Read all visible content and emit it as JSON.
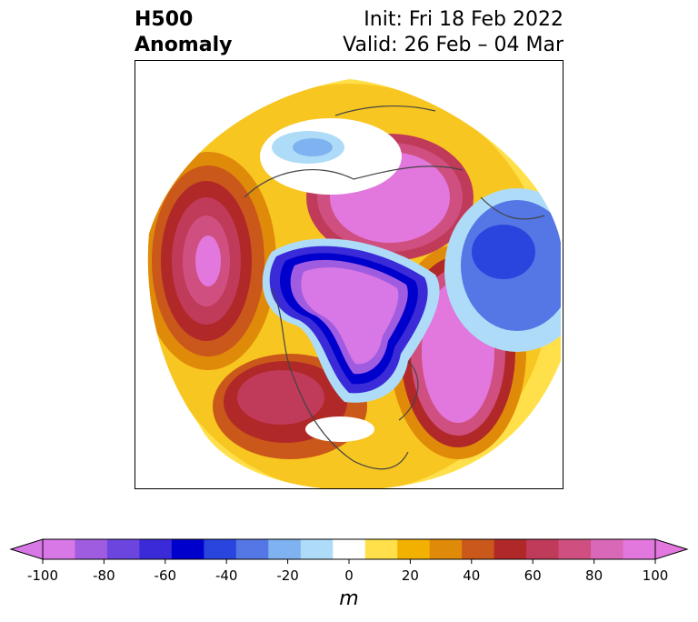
{
  "header": {
    "title_line1": "H500",
    "title_line2": "Anomaly",
    "init": "Init: Fri 18 Feb 2022",
    "valid": "Valid: 26 Feb – 04 Mar"
  },
  "colorbar": {
    "unit": "m",
    "ticks": [
      "-100",
      "-80",
      "-60",
      "-40",
      "-20",
      "0",
      "20",
      "40",
      "60",
      "80",
      "100"
    ],
    "colors": [
      "#d877e6",
      "#a05ce0",
      "#6b45dd",
      "#3a2ad8",
      "#0000cc",
      "#2a45de",
      "#5577e6",
      "#7fb2f0",
      "#aedcf8",
      "#ffffff",
      "#ffe04a",
      "#f2b100",
      "#e08a0a",
      "#c9581a",
      "#b02828",
      "#c03a5a",
      "#cf5080",
      "#d968b8",
      "#e277dd"
    ],
    "range": [
      -100,
      100
    ],
    "interval": 10
  }
}
